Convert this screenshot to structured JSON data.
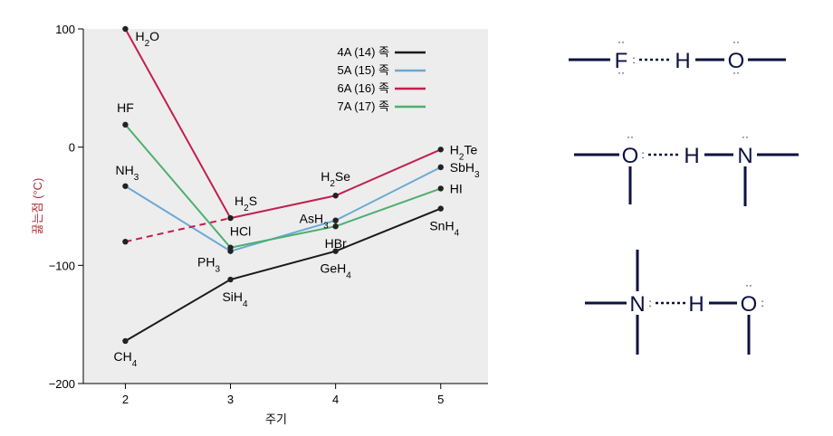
{
  "chart_data": {
    "type": "line",
    "xlabel": "주기",
    "ylabel": "끓는점 (°C)",
    "x": [
      2,
      3,
      4,
      5
    ],
    "xlim": [
      1.6,
      5.45
    ],
    "ylim": [
      -200,
      100
    ],
    "x_ticks": [
      "2",
      "3",
      "4",
      "5"
    ],
    "y_ticks": [
      {
        "value": 100,
        "label": "100"
      },
      {
        "value": 0,
        "label": "0"
      },
      {
        "value": -100,
        "label": "−100"
      },
      {
        "value": -200,
        "label": "−200"
      }
    ],
    "grid": false,
    "legend_position": "top-right",
    "series": [
      {
        "name": "4A (14) 족",
        "color": "#1a1a1a",
        "values": [
          -164,
          -112,
          -88,
          -52
        ],
        "labels": [
          "CH4",
          "SiH4",
          "GeH4",
          "SnH4"
        ]
      },
      {
        "name": "5A (15) 족",
        "color": "#6aaad4",
        "values": [
          -33,
          -88,
          -62,
          -17
        ],
        "labels": [
          "NH3",
          "PH3",
          "AsH3",
          "SbH3"
        ]
      },
      {
        "name": "6A (16) 족",
        "color": "#c21f4e",
        "values": [
          100,
          -60,
          -41,
          -2
        ],
        "labels": [
          "H2O",
          "H2S",
          "H2Se",
          "H2Te"
        ],
        "extrapolated_period2": -80
      },
      {
        "name": "7A (17) 족",
        "color": "#4daf6f",
        "values": [
          19,
          -85,
          -67,
          -35
        ],
        "labels": [
          "HF",
          "HCl",
          "HBr",
          "HI"
        ]
      }
    ]
  },
  "hbond_diagrams": {
    "items": [
      {
        "left": "F",
        "middle": "H",
        "right": "O"
      },
      {
        "left": "O",
        "middle": "H",
        "right": "N"
      },
      {
        "left": "N",
        "middle": "H",
        "right": "O"
      }
    ]
  }
}
